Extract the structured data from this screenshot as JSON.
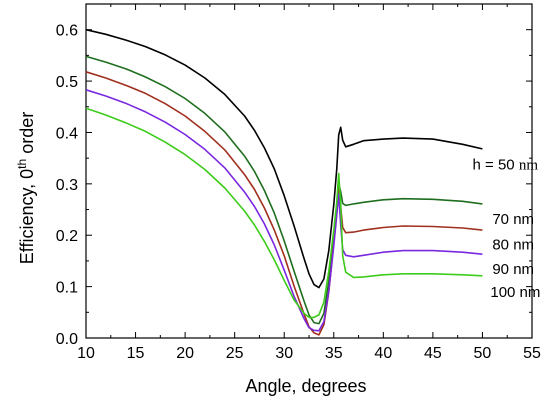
{
  "chart_data": {
    "type": "line",
    "title": "",
    "xlabel": "Angle, degrees",
    "ylabel": {
      "prefix": "Efficiency, 0",
      "sup": "th",
      "suffix": " order"
    },
    "xlim": [
      10,
      55
    ],
    "ylim": [
      0.0,
      0.65
    ],
    "xticks": [
      "10",
      "15",
      "20",
      "25",
      "30",
      "35",
      "40",
      "45",
      "50",
      "55"
    ],
    "yticks": [
      "0.0",
      "0.1",
      "0.2",
      "0.3",
      "0.4",
      "0.5",
      "0.6"
    ],
    "grid": false,
    "legend": "none",
    "series": [
      {
        "name": "h = 50 nm",
        "color": "#000000",
        "x": [
          10,
          12,
          14,
          16,
          18,
          20,
          22,
          24,
          26,
          27,
          28,
          29,
          30,
          31,
          32,
          32.5,
          33,
          33.5,
          34,
          34.5,
          35,
          35.3,
          35.5,
          35.7,
          35.9,
          36.2,
          37,
          38,
          40,
          42,
          45,
          48,
          50
        ],
        "y": [
          0.6,
          0.591,
          0.58,
          0.567,
          0.551,
          0.531,
          0.506,
          0.474,
          0.432,
          0.404,
          0.37,
          0.329,
          0.277,
          0.218,
          0.155,
          0.125,
          0.104,
          0.098,
          0.115,
          0.17,
          0.26,
          0.33,
          0.395,
          0.41,
          0.385,
          0.372,
          0.377,
          0.384,
          0.387,
          0.389,
          0.387,
          0.377,
          0.368
        ]
      },
      {
        "name": "70 nm",
        "color": "#1f6e1f",
        "x": [
          10,
          12,
          14,
          16,
          18,
          20,
          22,
          24,
          26,
          27,
          28,
          29,
          30,
          31,
          32,
          32.5,
          33,
          33.5,
          34,
          34.5,
          35,
          35.3,
          35.5,
          35.7,
          35.9,
          36.2,
          37,
          38,
          40,
          42,
          45,
          48,
          50
        ],
        "y": [
          0.548,
          0.537,
          0.524,
          0.508,
          0.489,
          0.466,
          0.437,
          0.401,
          0.354,
          0.324,
          0.287,
          0.243,
          0.189,
          0.13,
          0.072,
          0.045,
          0.03,
          0.028,
          0.048,
          0.11,
          0.2,
          0.26,
          0.3,
          0.285,
          0.262,
          0.258,
          0.261,
          0.264,
          0.269,
          0.271,
          0.27,
          0.266,
          0.261
        ]
      },
      {
        "name": "80 nm",
        "color": "#a0301e",
        "x": [
          10,
          12,
          14,
          16,
          18,
          20,
          22,
          24,
          26,
          27,
          28,
          29,
          30,
          31,
          32,
          32.5,
          33,
          33.5,
          34,
          34.5,
          35,
          35.3,
          35.5,
          35.7,
          35.9,
          36.2,
          37,
          38,
          40,
          42,
          45,
          48,
          50
        ],
        "y": [
          0.518,
          0.506,
          0.492,
          0.476,
          0.456,
          0.432,
          0.402,
          0.366,
          0.318,
          0.289,
          0.253,
          0.21,
          0.16,
          0.101,
          0.047,
          0.022,
          0.01,
          0.006,
          0.026,
          0.09,
          0.185,
          0.245,
          0.29,
          0.255,
          0.215,
          0.205,
          0.206,
          0.21,
          0.215,
          0.218,
          0.217,
          0.214,
          0.21
        ]
      },
      {
        "name": "90 nm",
        "color": "#7a28e0",
        "x": [
          10,
          12,
          14,
          16,
          18,
          20,
          22,
          24,
          26,
          27,
          28,
          29,
          30,
          31,
          32,
          32.5,
          33,
          33.5,
          34,
          34.5,
          35,
          35.3,
          35.5,
          35.7,
          35.9,
          36.2,
          37,
          38,
          40,
          42,
          45,
          48,
          50
        ],
        "y": [
          0.483,
          0.471,
          0.457,
          0.44,
          0.42,
          0.396,
          0.367,
          0.331,
          0.284,
          0.256,
          0.222,
          0.181,
          0.132,
          0.081,
          0.038,
          0.02,
          0.015,
          0.014,
          0.032,
          0.092,
          0.18,
          0.24,
          0.28,
          0.22,
          0.172,
          0.161,
          0.158,
          0.161,
          0.167,
          0.17,
          0.17,
          0.167,
          0.163
        ]
      },
      {
        "name": "100 nm",
        "color": "#3dcc1a",
        "x": [
          10,
          12,
          14,
          16,
          18,
          20,
          22,
          24,
          26,
          27,
          28,
          29,
          30,
          31,
          32,
          32.5,
          33,
          33.5,
          34,
          34.5,
          35,
          35.3,
          35.5,
          35.7,
          35.9,
          36.2,
          37,
          38,
          40,
          42,
          45,
          48,
          50
        ],
        "y": [
          0.447,
          0.434,
          0.419,
          0.402,
          0.381,
          0.357,
          0.328,
          0.292,
          0.247,
          0.22,
          0.188,
          0.152,
          0.112,
          0.074,
          0.048,
          0.04,
          0.04,
          0.045,
          0.07,
          0.13,
          0.21,
          0.265,
          0.32,
          0.26,
          0.16,
          0.128,
          0.118,
          0.119,
          0.123,
          0.125,
          0.125,
          0.123,
          0.121
        ]
      }
    ],
    "curve_labels": [
      {
        "series": 0,
        "prefix": "h = 50 ",
        "unit": "nm",
        "at": [
          49.0,
          0.328
        ]
      },
      {
        "series": 1,
        "prefix": "70 nm",
        "unit": "",
        "at": [
          51.0,
          0.222
        ]
      },
      {
        "series": 2,
        "prefix": "80 nm",
        "unit": "",
        "at": [
          51.0,
          0.172
        ]
      },
      {
        "series": 3,
        "prefix": "90 nm",
        "unit": "",
        "at": [
          51.0,
          0.125
        ]
      },
      {
        "series": 4,
        "prefix": "100 nm",
        "unit": "",
        "at": [
          50.8,
          0.08
        ]
      }
    ]
  }
}
